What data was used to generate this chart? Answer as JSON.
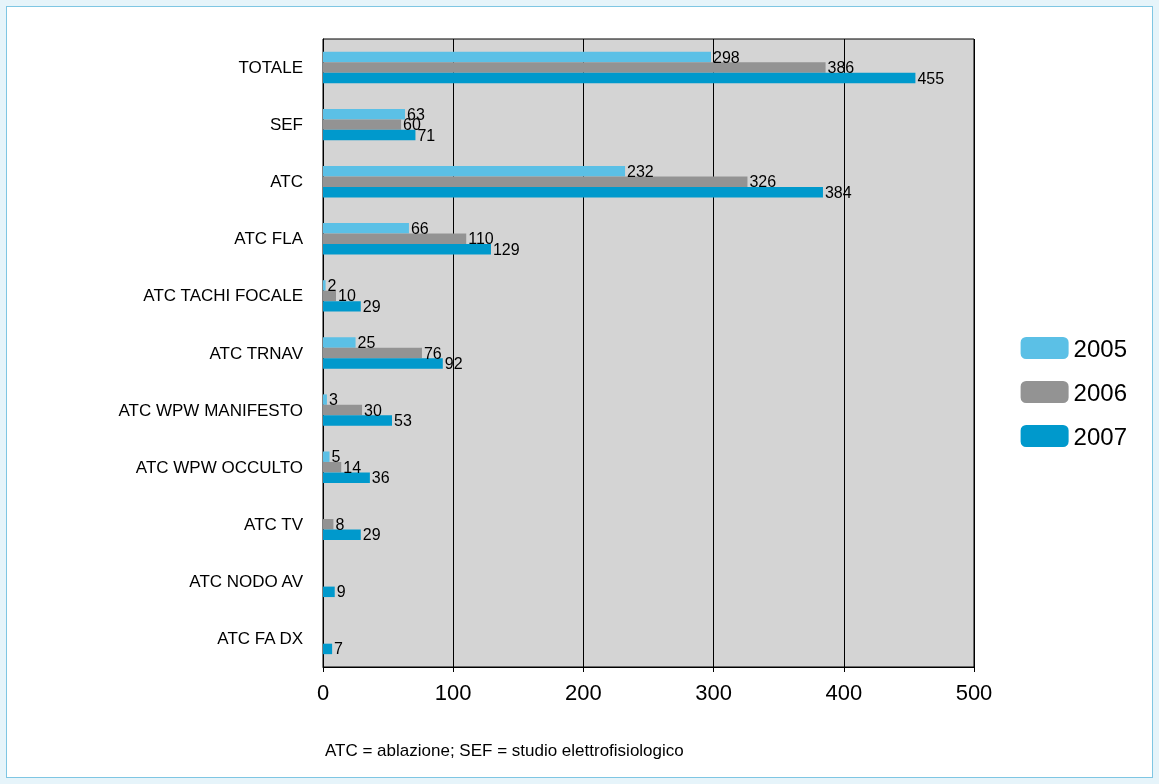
{
  "chart_data": {
    "type": "bar",
    "orientation": "horizontal",
    "categories": [
      "TOTALE",
      "SEF",
      "ATC",
      "ATC FLA",
      "ATC TACHI FOCALE",
      "ATC TRNAV",
      "ATC WPW MANIFESTO",
      "ATC WPW OCCULTO",
      "ATC TV",
      "ATC NODO AV",
      "ATC FA DX"
    ],
    "series": [
      {
        "name": "2005",
        "color": "#5bc0e6",
        "values": [
          298,
          63,
          232,
          66,
          2,
          25,
          3,
          5,
          null,
          null,
          null
        ]
      },
      {
        "name": "2006",
        "color": "#939393",
        "values": [
          386,
          60,
          326,
          110,
          10,
          76,
          30,
          14,
          8,
          null,
          null
        ]
      },
      {
        "name": "2007",
        "color": "#0099cc",
        "values": [
          455,
          71,
          384,
          129,
          29,
          92,
          53,
          36,
          29,
          9,
          7
        ]
      }
    ],
    "xlim": [
      0,
      500
    ],
    "xticks": [
      0,
      100,
      200,
      300,
      400,
      500
    ],
    "grid": "x",
    "legend": "right",
    "data_labels": true,
    "annotations": [
      "ATC = ablazione; SEF = studio elettrofisiologico"
    ]
  }
}
